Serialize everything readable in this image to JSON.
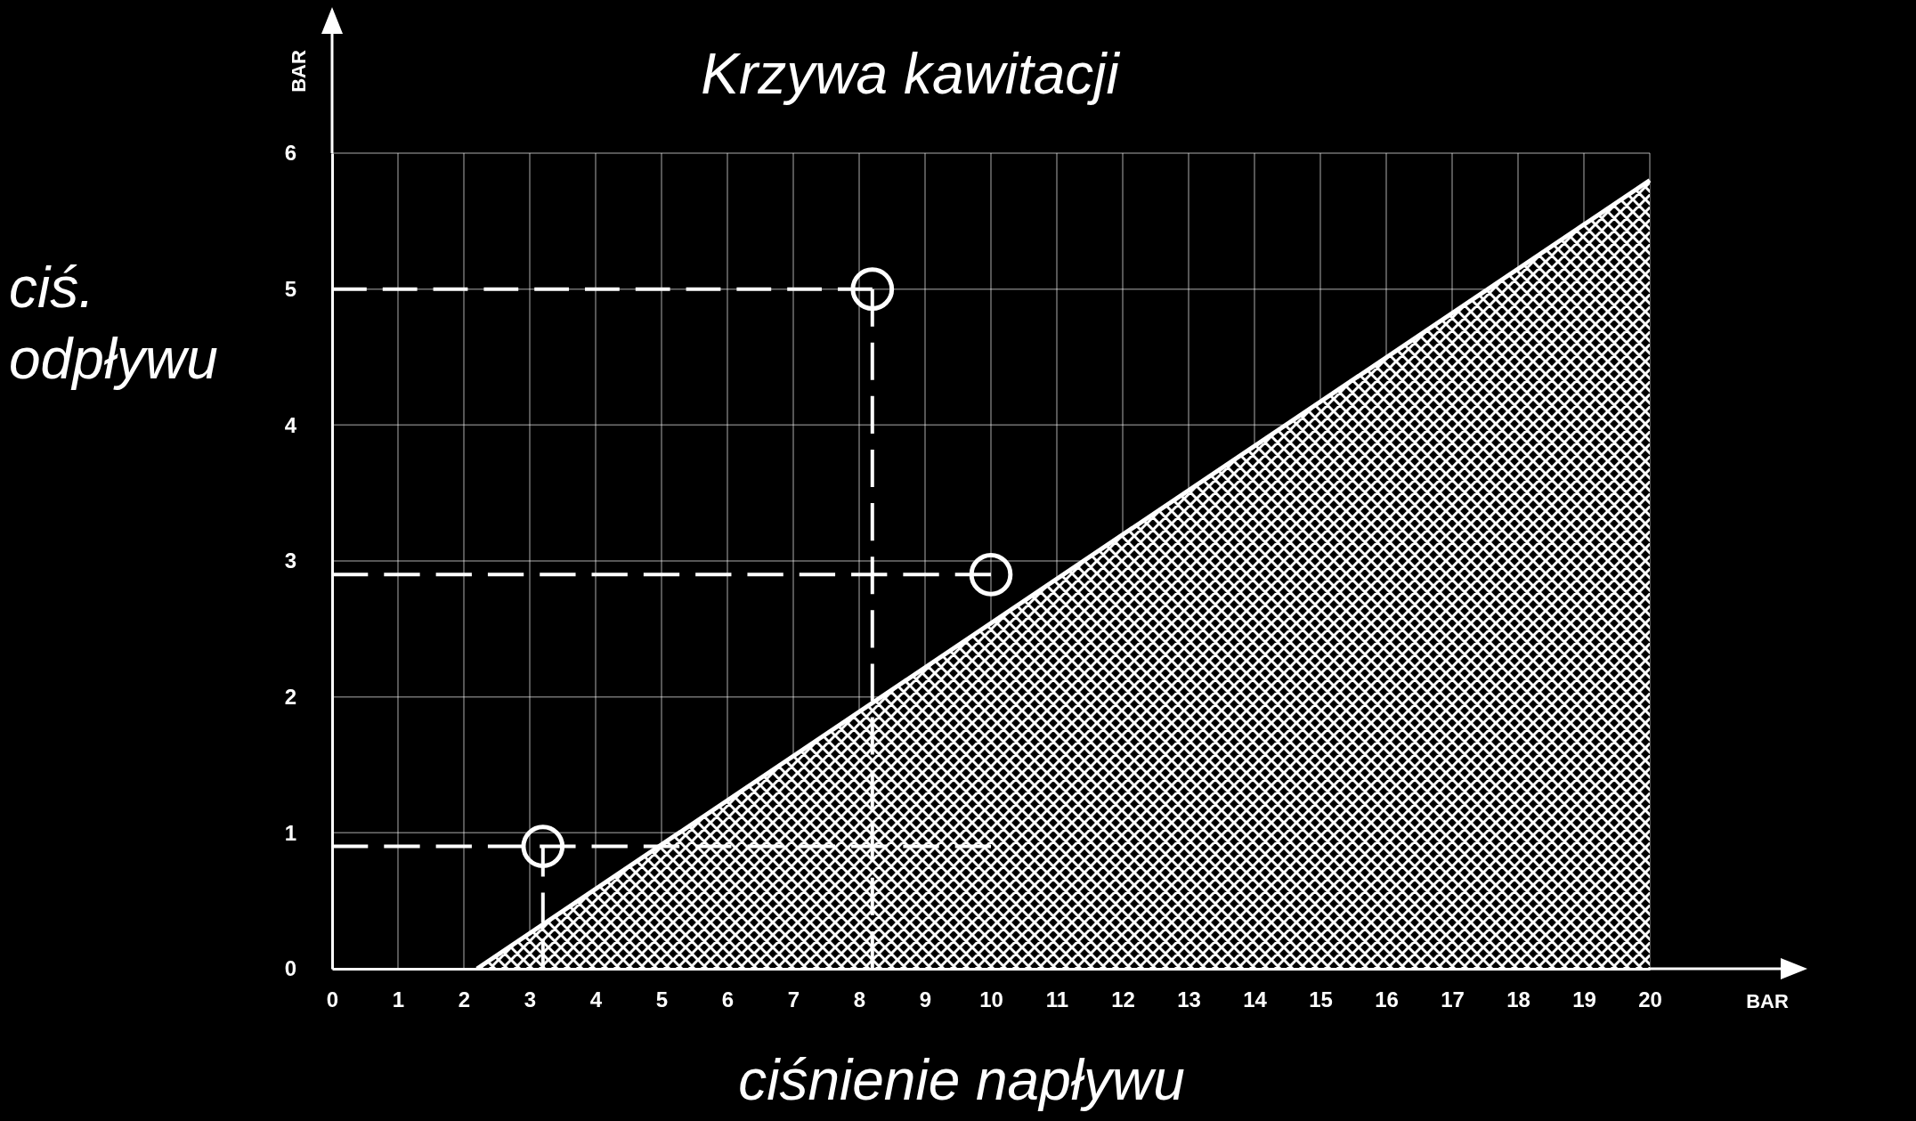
{
  "chart_data": {
    "type": "area",
    "title": "Krzywa kawitacji",
    "xlabel": "ciśnienie napływu",
    "ylabel": "ciś. odpływu",
    "annotations": [
      "BAR",
      "BAR"
    ],
    "xlim": [
      0,
      20
    ],
    "ylim": [
      0,
      6
    ],
    "xticks": [
      0,
      1,
      2,
      3,
      4,
      5,
      6,
      7,
      8,
      9,
      10,
      11,
      12,
      13,
      14,
      15,
      16,
      17,
      18,
      19,
      20
    ],
    "yticks": [
      0,
      1,
      2,
      3,
      4,
      5,
      6
    ],
    "grid": true,
    "series": [
      {
        "color": "#ffffff",
        "x": [
          2.2,
          20
        ],
        "values": [
          0,
          5.8
        ]
      },
      {
        "type": "line",
        "line_style": "dashed",
        "color": "#ffffff",
        "x": [
          0,
          8.2
        ],
        "values": [
          5.0,
          5.0
        ]
      },
      {
        "type": "line",
        "line_style": "dashed",
        "color": "#ffffff",
        "x": [
          8.2,
          8.2
        ],
        "values": [
          5.0,
          0
        ]
      },
      {
        "type": "line",
        "line_style": "dashed",
        "color": "#ffffff",
        "x": [
          0,
          10
        ],
        "values": [
          2.9,
          2.9
        ]
      },
      {
        "type": "line",
        "line_style": "dashed",
        "color": "#ffffff",
        "x": [
          0,
          10
        ],
        "values": [
          0.9,
          0.9
        ]
      },
      {
        "type": "line",
        "line_style": "dashed",
        "color": "#ffffff",
        "x": [
          3.2,
          3.2
        ],
        "values": [
          0.9,
          0
        ]
      },
      {
        "type": "scatter",
        "marker": "circle",
        "color": "#ffffff",
        "x": [
          8.2,
          10,
          3.2
        ],
        "values": [
          5.0,
          2.9,
          0.9
        ]
      }
    ]
  }
}
